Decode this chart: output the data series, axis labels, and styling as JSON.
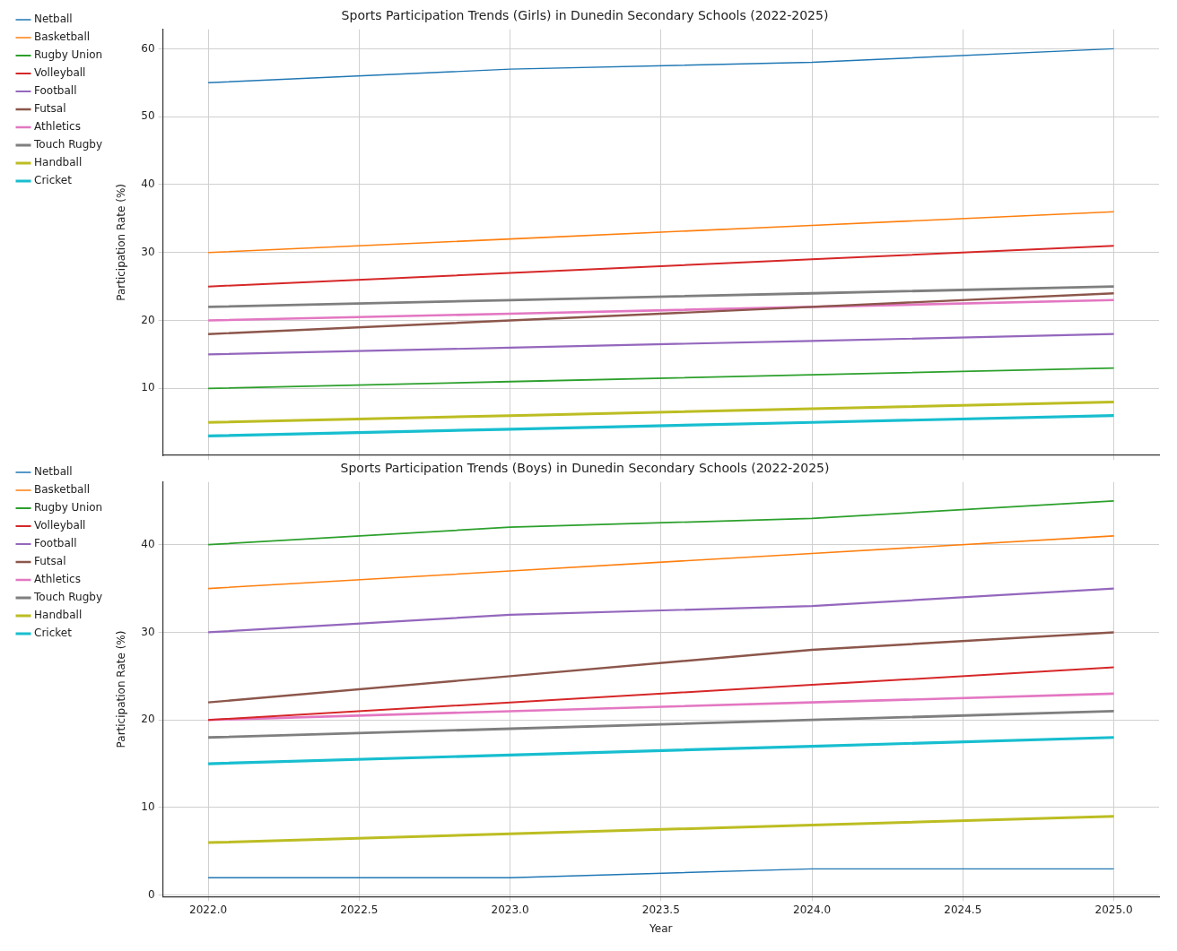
{
  "chart_data": [
    {
      "type": "line",
      "title": "Sports Participation Trends (Girls) in Dunedin Secondary Schools (2022-2025)",
      "ylabel": "Participation Rate (%)",
      "x": [
        2022,
        2023,
        2024,
        2025
      ],
      "xlim": [
        2021.85,
        2025.15
      ],
      "xticks": [
        {
          "value": 2022,
          "label": null
        },
        {
          "value": 2022.5,
          "label": null
        },
        {
          "value": 2023,
          "label": null
        },
        {
          "value": 2023.5,
          "label": null
        },
        {
          "value": 2024,
          "label": null
        },
        {
          "value": 2024.5,
          "label": null
        },
        {
          "value": 2025,
          "label": null
        }
      ],
      "ylim": [
        0.15,
        62.85
      ],
      "yticks": [
        10,
        20,
        30,
        40,
        50,
        60
      ],
      "tick_labels": "y",
      "grid": true,
      "legend": "top left",
      "series": [
        {
          "name": "Netball",
          "color": "#1f77b4",
          "values": [
            55,
            57,
            58,
            60
          ]
        },
        {
          "name": "Basketball",
          "color": "#ff7f0e",
          "values": [
            30,
            32,
            34,
            36
          ]
        },
        {
          "name": "Rugby Union",
          "color": "#2ca02c",
          "values": [
            10,
            11,
            12,
            13
          ]
        },
        {
          "name": "Volleyball",
          "color": "#d62728",
          "values": [
            25,
            27,
            29,
            31
          ]
        },
        {
          "name": "Football",
          "color": "#9467bd",
          "values": [
            15,
            16,
            17,
            18
          ]
        },
        {
          "name": "Futsal",
          "color": "#8c564b",
          "values": [
            18,
            20,
            22,
            24
          ]
        },
        {
          "name": "Athletics",
          "color": "#e377c2",
          "values": [
            20,
            21,
            22,
            23
          ]
        },
        {
          "name": "Touch Rugby",
          "color": "#7f7f7f",
          "values": [
            22,
            23,
            24,
            25
          ]
        },
        {
          "name": "Handball",
          "color": "#bcbd22",
          "values": [
            5,
            6,
            7,
            8
          ]
        },
        {
          "name": "Cricket",
          "color": "#17becf",
          "values": [
            3,
            4,
            5,
            6
          ]
        }
      ]
    },
    {
      "type": "line",
      "title": "Sports Participation Trends (Boys) in Dunedin Secondary Schools (2022-2025)",
      "xlabel": "Year",
      "ylabel": "Participation Rate (%)",
      "x": [
        2022,
        2023,
        2024,
        2025
      ],
      "xlim": [
        2021.85,
        2025.15
      ],
      "xticks": [
        {
          "value": 2022,
          "label": "2022.0"
        },
        {
          "value": 2022.5,
          "label": "2022.5"
        },
        {
          "value": 2023,
          "label": "2023.0"
        },
        {
          "value": 2023.5,
          "label": "2023.5"
        },
        {
          "value": 2024,
          "label": "2024.0"
        },
        {
          "value": 2024.5,
          "label": "2024.5"
        },
        {
          "value": 2025,
          "label": "2025.0"
        }
      ],
      "ylim": [
        -0.15,
        47.15
      ],
      "yticks": [
        0,
        10,
        20,
        30,
        40
      ],
      "grid": true,
      "legend": "top left",
      "series": [
        {
          "name": "Netball",
          "color": "#1f77b4",
          "values": [
            2,
            2,
            3,
            3
          ]
        },
        {
          "name": "Basketball",
          "color": "#ff7f0e",
          "values": [
            35,
            37,
            39,
            41
          ]
        },
        {
          "name": "Rugby Union",
          "color": "#2ca02c",
          "values": [
            40,
            42,
            43,
            45
          ]
        },
        {
          "name": "Volleyball",
          "color": "#d62728",
          "values": [
            20,
            22,
            24,
            26
          ]
        },
        {
          "name": "Football",
          "color": "#9467bd",
          "values": [
            30,
            32,
            33,
            35
          ]
        },
        {
          "name": "Futsal",
          "color": "#8c564b",
          "values": [
            22,
            25,
            28,
            30
          ]
        },
        {
          "name": "Athletics",
          "color": "#e377c2",
          "values": [
            20,
            21,
            22,
            23
          ]
        },
        {
          "name": "Touch Rugby",
          "color": "#7f7f7f",
          "values": [
            18,
            19,
            20,
            21
          ]
        },
        {
          "name": "Handball",
          "color": "#bcbd22",
          "values": [
            6,
            7,
            8,
            9
          ]
        },
        {
          "name": "Cricket",
          "color": "#17becf",
          "values": [
            15,
            16,
            17,
            18
          ]
        }
      ]
    }
  ]
}
